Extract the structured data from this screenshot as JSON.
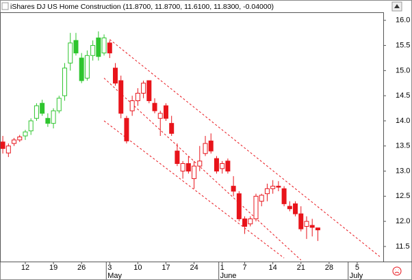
{
  "chart_data": {
    "type": "candlestick",
    "title": "iShares DJ US Home Construction (11.8700, 11.8700, 11.6100, 11.8300, -0.04000)",
    "categories": [
      null,
      null,
      null,
      null,
      "12",
      null,
      null,
      null,
      null,
      "19",
      null,
      null,
      null,
      null,
      "26",
      null,
      null,
      null,
      null,
      "3",
      null,
      null,
      null,
      null,
      "10",
      null,
      null,
      null,
      null,
      "17",
      null,
      null,
      null,
      null,
      "24",
      null,
      null,
      null,
      null,
      "1",
      null,
      null,
      null,
      "7",
      null,
      null,
      null,
      null,
      "14",
      null,
      null,
      null,
      null,
      "21",
      null,
      null,
      null,
      null,
      "28",
      null,
      null,
      null,
      null,
      "5",
      null,
      null,
      null,
      null
    ],
    "months": [
      null,
      null,
      null,
      null,
      null,
      null,
      null,
      null,
      null,
      null,
      null,
      null,
      null,
      null,
      null,
      null,
      null,
      null,
      null,
      "May",
      null,
      null,
      null,
      null,
      null,
      null,
      null,
      null,
      null,
      null,
      null,
      null,
      null,
      null,
      null,
      null,
      null,
      null,
      null,
      "June",
      null,
      null,
      null,
      null,
      null,
      null,
      null,
      null,
      null,
      null,
      null,
      null,
      null,
      null,
      null,
      null,
      null,
      null,
      null,
      null,
      null,
      null,
      "July",
      null,
      null,
      null,
      null,
      null
    ],
    "series": [
      {
        "open": [
          13.58,
          13.36,
          13.55,
          13.62,
          13.7,
          13.8,
          14.05,
          14.35,
          14.05,
          13.95,
          14.2,
          14.5,
          15.15,
          15.6,
          15.25,
          14.85,
          15.3,
          15.65,
          15.35,
          15.55,
          15.05,
          14.8,
          14.05,
          14.2,
          14.4,
          14.55,
          14.8,
          14.35,
          14.05,
          14.3,
          13.95,
          13.4,
          13.0,
          13.15,
          12.85,
          13.1,
          13.35,
          13.6,
          13.25,
          13.05,
          13.2,
          12.7,
          12.55,
          12.05,
          11.95,
          12.05,
          12.4,
          12.55,
          12.65,
          12.7,
          12.65,
          12.3,
          12.35,
          12.15,
          11.9,
          11.92,
          11.87,
          null,
          null,
          null,
          null,
          null,
          null,
          null,
          null,
          null,
          null,
          null
        ],
        "high": [
          13.7,
          13.55,
          13.66,
          13.72,
          13.82,
          14.05,
          14.35,
          14.42,
          14.15,
          14.25,
          14.5,
          15.15,
          15.75,
          15.75,
          15.35,
          15.4,
          15.6,
          15.78,
          15.72,
          15.6,
          15.15,
          14.9,
          14.1,
          14.5,
          14.65,
          14.8,
          14.8,
          14.45,
          14.2,
          14.35,
          14.1,
          13.55,
          13.2,
          13.3,
          13.2,
          13.5,
          13.7,
          13.75,
          13.3,
          13.2,
          13.25,
          12.9,
          12.6,
          12.1,
          12.1,
          12.55,
          12.55,
          12.75,
          12.82,
          12.8,
          12.7,
          12.4,
          12.4,
          12.3,
          12.1,
          12.05,
          11.87,
          null,
          null,
          null,
          null,
          null,
          null,
          null,
          null,
          null,
          null,
          null
        ],
        "low": [
          13.35,
          13.28,
          13.5,
          13.58,
          13.62,
          13.72,
          14.0,
          14.1,
          13.88,
          13.85,
          14.15,
          14.4,
          15.0,
          15.3,
          14.75,
          14.8,
          15.2,
          15.2,
          15.3,
          15.25,
          14.7,
          14.05,
          13.55,
          14.1,
          14.3,
          14.45,
          14.35,
          14.15,
          13.7,
          14.0,
          13.7,
          13.1,
          12.85,
          12.95,
          12.65,
          13.0,
          13.3,
          13.35,
          12.95,
          12.95,
          12.95,
          12.5,
          12.0,
          11.75,
          11.9,
          12.0,
          12.3,
          12.4,
          12.55,
          12.6,
          12.3,
          12.2,
          12.1,
          11.8,
          11.65,
          11.7,
          11.61,
          null,
          null,
          null,
          null,
          null,
          null,
          null,
          null,
          null,
          null,
          null
        ],
        "close": [
          13.45,
          13.5,
          13.62,
          13.68,
          13.78,
          14.0,
          14.3,
          14.15,
          13.95,
          14.2,
          14.45,
          15.05,
          15.55,
          15.35,
          14.8,
          15.3,
          15.5,
          15.28,
          15.65,
          15.35,
          14.75,
          14.15,
          13.6,
          14.4,
          14.55,
          14.75,
          14.4,
          14.2,
          14.15,
          14.05,
          13.75,
          13.15,
          13.15,
          13.0,
          13.1,
          13.2,
          13.55,
          13.4,
          13.0,
          13.15,
          13.0,
          12.6,
          12.05,
          11.9,
          12.05,
          12.5,
          12.52,
          12.65,
          12.7,
          12.68,
          12.35,
          12.25,
          12.15,
          11.85,
          12.0,
          11.88,
          11.83,
          null,
          null,
          null,
          null,
          null,
          null,
          null,
          null,
          null,
          null,
          null
        ],
        "colors": [
          "#e8141b",
          "#e8141b",
          "#e8141b",
          "#e8141b",
          "#2ec52e",
          "#2ec52e",
          "#2ec52e",
          "#2ec52e",
          "#2ec52e",
          "#2ec52e",
          "#2ec52e",
          "#2ec52e",
          "#2ec52e",
          "#2ec52e",
          "#2ec52e",
          "#2ec52e",
          "#2ec52e",
          "#2ec52e",
          "#2ec52e",
          "#e8141b",
          "#e8141b",
          "#e8141b",
          "#e8141b",
          "#e8141b",
          "#e8141b",
          "#e8141b",
          "#e8141b",
          "#e8141b",
          "#e8141b",
          "#e8141b",
          "#e8141b",
          "#e8141b",
          "#e8141b",
          "#e8141b",
          "#e8141b",
          "#e8141b",
          "#e8141b",
          "#e8141b",
          "#e8141b",
          "#e8141b",
          "#e8141b",
          "#e8141b",
          "#e8141b",
          "#e8141b",
          "#e8141b",
          "#e8141b",
          "#e8141b",
          "#e8141b",
          "#e8141b",
          "#e8141b",
          "#e8141b",
          "#e8141b",
          "#e8141b",
          "#e8141b",
          "#e8141b",
          "#e8141b",
          "#e8141b",
          null,
          null,
          null,
          null,
          null,
          null,
          null,
          null,
          null,
          null,
          null
        ]
      }
    ],
    "trendlines": [
      {
        "start": [
          19,
          15.62
        ],
        "end": [
          67,
          11.3
        ],
        "color": "#e8141b"
      },
      {
        "start": [
          18,
          14.85
        ],
        "end": [
          53,
          11.23
        ],
        "color": "#e8141b"
      },
      {
        "start": [
          18,
          14.0
        ],
        "end": [
          50,
          11.27
        ],
        "color": "#e8141b"
      }
    ],
    "ylim": [
      11.2,
      16.16
    ],
    "yticks": [
      {
        "value": 11.5,
        "label": "11.5"
      },
      {
        "value": 12,
        "label": "12.0"
      },
      12.5,
      {
        "value": 13,
        "label": "13.0"
      },
      13.5,
      {
        "value": 14,
        "label": "14.0"
      },
      14.5,
      {
        "value": 15,
        "label": "15.0"
      },
      15.5,
      {
        "value": 16,
        "label": "16.0"
      }
    ]
  }
}
